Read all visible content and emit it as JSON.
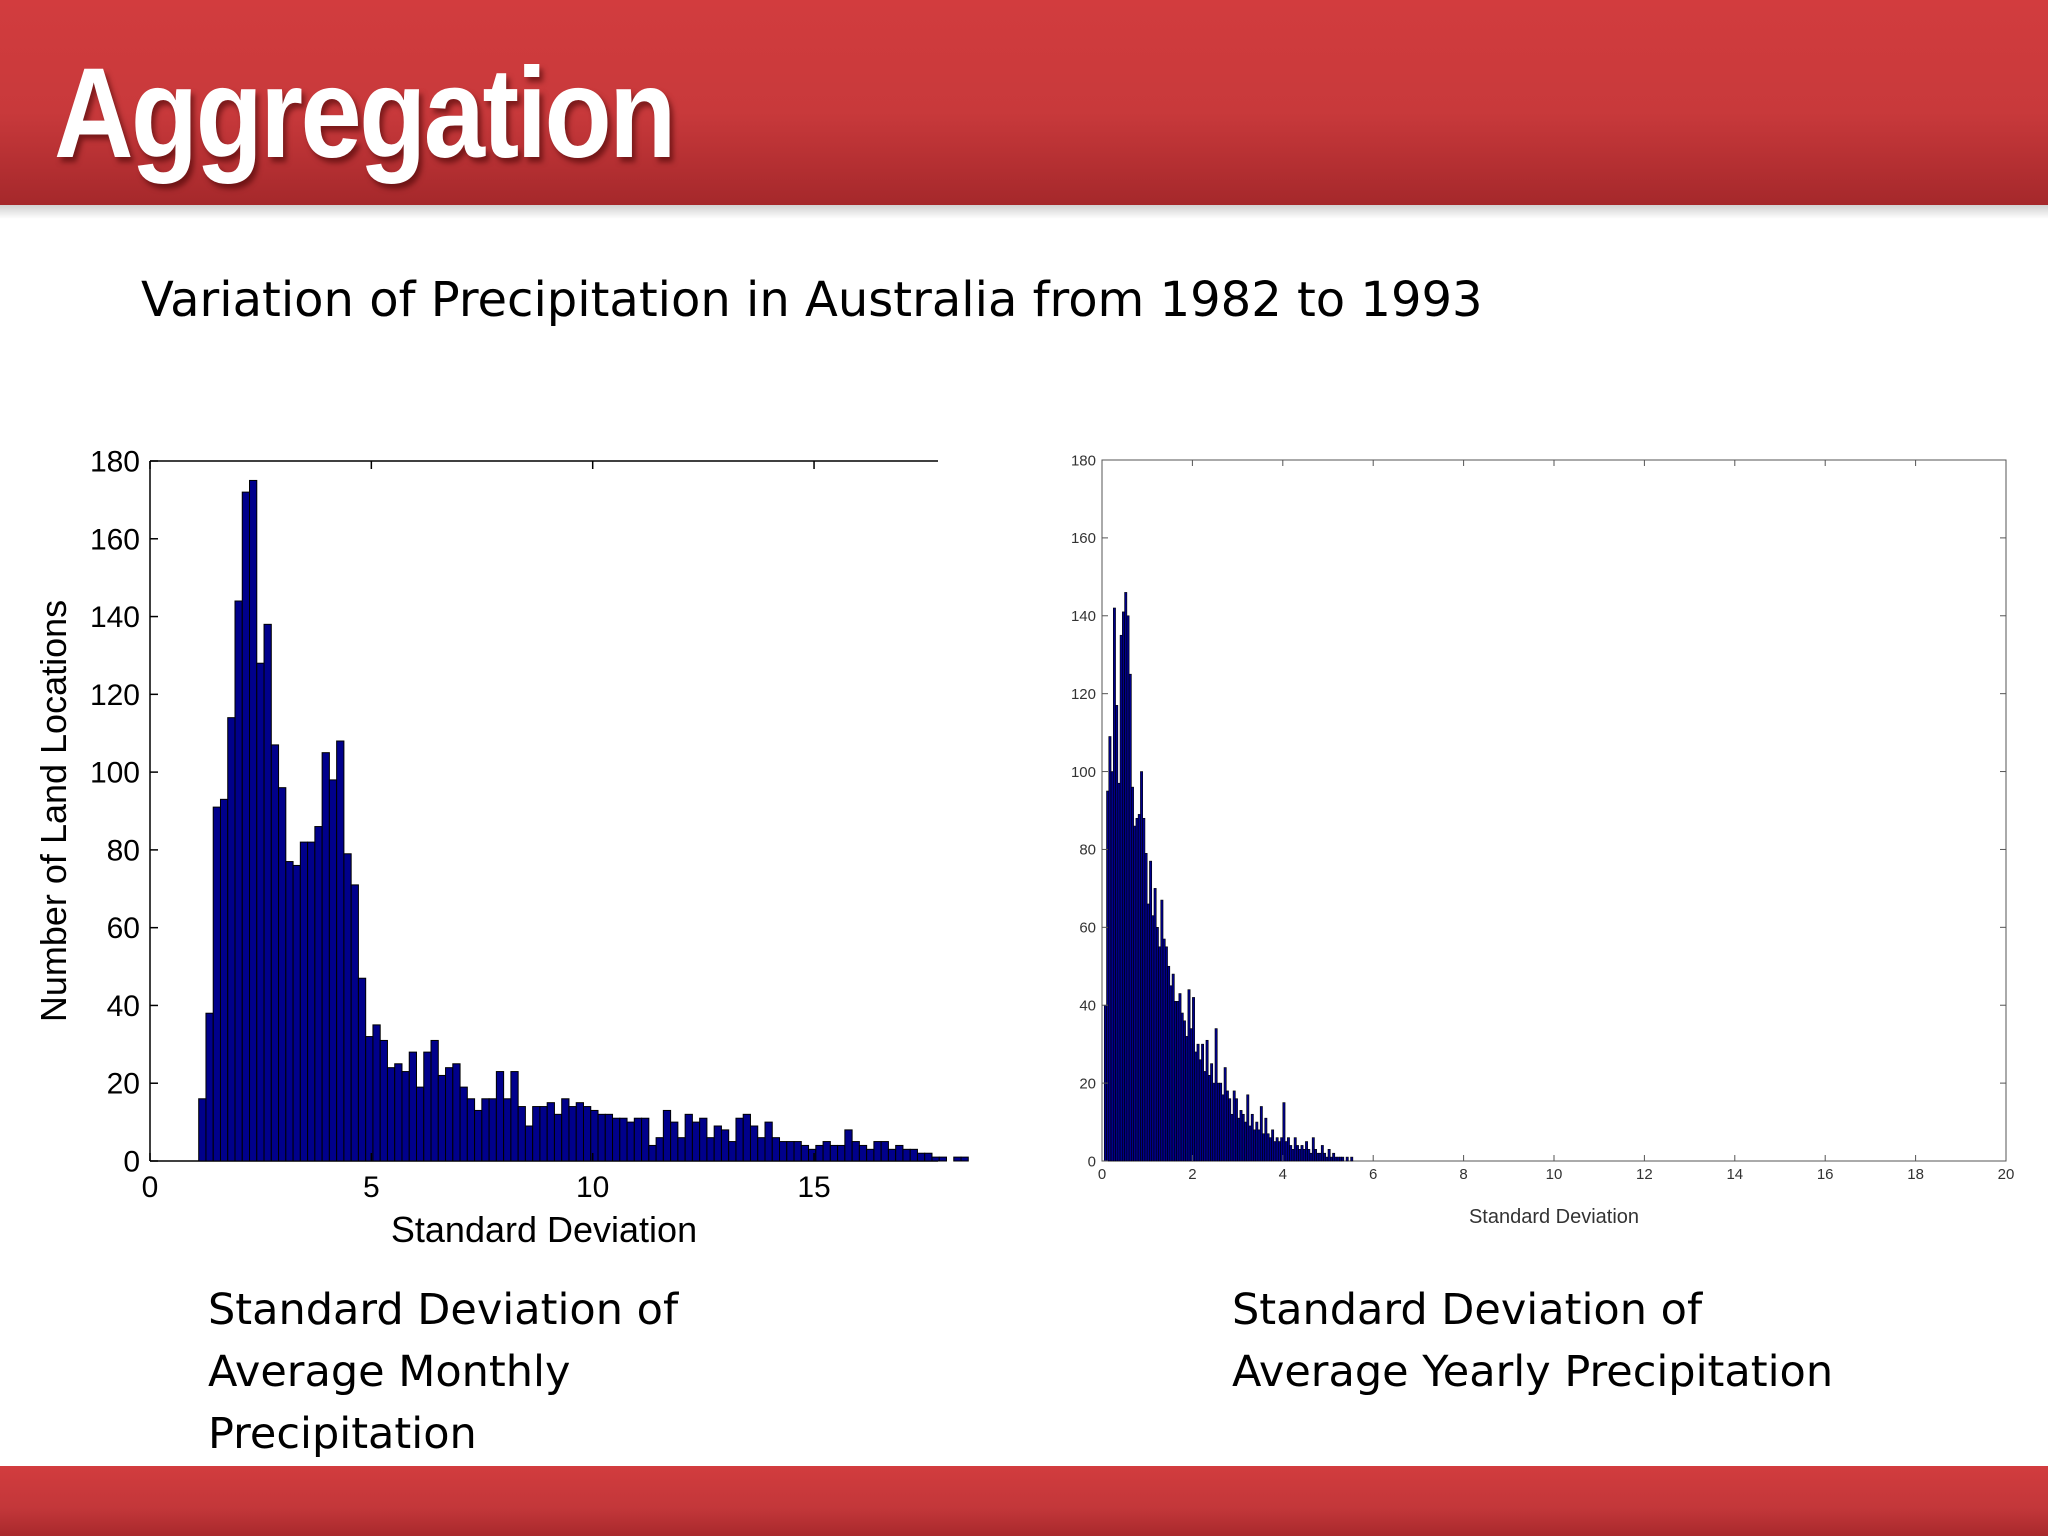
{
  "slide": {
    "title": "Aggregation",
    "subtitle": "Variation of Precipitation in Australia from 1982 to 1993",
    "caption_left": [
      "Standard Deviation of",
      "Average Monthly",
      "Precipitation"
    ],
    "caption_right": [
      "Standard Deviation of",
      "Average Yearly Precipitation"
    ]
  },
  "colors": {
    "header_red": "#c8393b",
    "bar_fill": "#00008b",
    "bar_edge": "#000000"
  },
  "chart_data": [
    {
      "type": "bar",
      "title": "Standard Deviation of Average Monthly Precipitation",
      "xlabel": "Standard Deviation",
      "ylabel": "Number of Land Locations",
      "xlim": [
        0,
        17.8
      ],
      "ylim": [
        0,
        180
      ],
      "xticks": [
        "0",
        "5",
        "10",
        "15"
      ],
      "yticks": [
        "0",
        "20",
        "40",
        "60",
        "80",
        "100",
        "120",
        "140",
        "160",
        "180"
      ],
      "bin_start": 1.1,
      "bin_width": 0.164,
      "values": [
        16,
        38,
        91,
        93,
        114,
        144,
        172,
        175,
        128,
        138,
        107,
        96,
        77,
        76,
        82,
        82,
        86,
        105,
        98,
        108,
        79,
        71,
        47,
        32,
        35,
        31,
        24,
        25,
        23,
        28,
        19,
        28,
        31,
        22,
        24,
        25,
        19,
        16,
        13,
        16,
        16,
        23,
        16,
        23,
        14,
        9,
        14,
        14,
        15,
        12,
        16,
        14,
        15,
        14,
        13,
        12,
        12,
        11,
        11,
        10,
        11,
        11,
        4,
        6,
        13,
        10,
        6,
        12,
        10,
        11,
        6,
        9,
        8,
        5,
        11,
        12,
        9,
        6,
        10,
        6,
        5,
        5,
        5,
        4,
        3,
        4,
        5,
        4,
        4,
        8,
        5,
        4,
        3,
        5,
        5,
        3,
        4,
        3,
        3,
        2,
        2,
        1,
        1,
        0,
        1,
        1
      ],
      "grid": false
    },
    {
      "type": "bar",
      "title": "Standard Deviation of Average Yearly Precipitation",
      "xlabel": "Standard Deviation",
      "ylabel": "",
      "xlim": [
        0,
        20
      ],
      "ylim": [
        0,
        180
      ],
      "xticks": [
        "0",
        "2",
        "4",
        "6",
        "8",
        "10",
        "12",
        "14",
        "16",
        "18",
        "20"
      ],
      "yticks": [
        "0",
        "20",
        "40",
        "60",
        "80",
        "100",
        "120",
        "140",
        "160",
        "180"
      ],
      "bin_start": 0.05,
      "bin_width": 0.05,
      "values": [
        40,
        95,
        109,
        100,
        142,
        117,
        97,
        135,
        141,
        146,
        140,
        125,
        96,
        86,
        88,
        89,
        100,
        88,
        79,
        66,
        77,
        63,
        70,
        60,
        55,
        67,
        57,
        55,
        50,
        45,
        48,
        41,
        41,
        43,
        38,
        36,
        32,
        44,
        34,
        42,
        28,
        30,
        26,
        30,
        23,
        31,
        22,
        25,
        20,
        34,
        20,
        20,
        17,
        24,
        18,
        16,
        12,
        18,
        16,
        11,
        13,
        12,
        10,
        17,
        9,
        12,
        8,
        10,
        8,
        14,
        7,
        11,
        7,
        6,
        8,
        5,
        6,
        5,
        6,
        15,
        5,
        6,
        4,
        3,
        6,
        4,
        3,
        4,
        3,
        5,
        3,
        2,
        6,
        3,
        2,
        2,
        4,
        2,
        1,
        3,
        1,
        2,
        1,
        1,
        1,
        1,
        0,
        1,
        0,
        1
      ]
    }
  ]
}
